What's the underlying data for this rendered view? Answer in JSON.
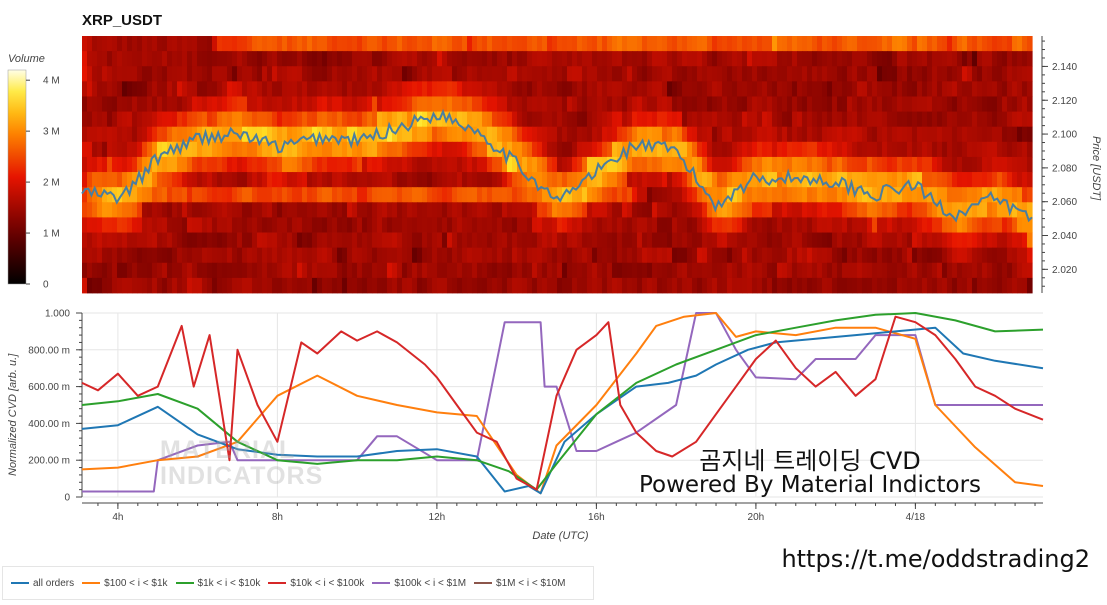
{
  "title": "XRP_USDT",
  "overlay": {
    "caption_ko": "곰지네 트레이딩 CVD",
    "caption_en": "Powered By Material Indictors",
    "url": "https://t.me/oddstrading2",
    "watermark": [
      "MATERIAL",
      "INDICATORS"
    ]
  },
  "colors": {
    "all_orders": "#1f77b4",
    "s100": "#ff7f0e",
    "s1k": "#2ca02c",
    "s10k": "#d62728",
    "s100k": "#9467bd",
    "s1m": "#8c564b",
    "price": "#4a7ea0"
  },
  "chart_data": [
    {
      "type": "heatmap",
      "title": "XRP_USDT",
      "ylabel": "Price [USDT]",
      "ylim": [
        2.006,
        2.158
      ],
      "yticks": [
        "2.020",
        "2.040",
        "2.060",
        "2.080",
        "2.100",
        "2.120",
        "2.140"
      ],
      "colorbar": {
        "label": "Volume",
        "ticks": [
          "0",
          "1 M",
          "2 M",
          "3 M",
          "4 M"
        ],
        "range": [
          0,
          4200000
        ]
      },
      "price_series": {
        "x": [
          3.0,
          4.0,
          5.0,
          6.0,
          7.0,
          8.0,
          9.0,
          10.0,
          11.0,
          12.0,
          13.0,
          14.0,
          15.0,
          16.0,
          17.0,
          18.0,
          19.0,
          20.0,
          21.0,
          22.0,
          23.0,
          24.0,
          25.0,
          26.0,
          27.0
        ],
        "y": [
          2.066,
          2.062,
          2.088,
          2.098,
          2.1,
          2.092,
          2.098,
          2.096,
          2.104,
          2.112,
          2.102,
          2.082,
          2.06,
          2.078,
          2.094,
          2.09,
          2.058,
          2.074,
          2.074,
          2.072,
          2.064,
          2.07,
          2.052,
          2.062,
          2.05
        ]
      }
    },
    {
      "type": "line",
      "xlabel": "Date (UTC)",
      "ylabel": "Normalized CVD [arb. u.]",
      "ylim": [
        0,
        1
      ],
      "yticks": [
        "0",
        "200.00 m",
        "400.00 m",
        "600.00 m",
        "800.00 m",
        "1.000"
      ],
      "xticks": [
        "4h",
        "8h",
        "12h",
        "16h",
        "20h",
        "4/18"
      ],
      "xlim": [
        3.1,
        27.2
      ],
      "series": [
        {
          "name": "all orders",
          "x": [
            3.1,
            4,
            5,
            6,
            7,
            8,
            9,
            10,
            11,
            12,
            13,
            13.7,
            14.3,
            14.6,
            15.2,
            16,
            17,
            17.8,
            18.5,
            19,
            19.8,
            20.5,
            21.5,
            22.5,
            23.5,
            24.5,
            25.2,
            26,
            27.2
          ],
          "y": [
            0.37,
            0.39,
            0.49,
            0.34,
            0.26,
            0.23,
            0.22,
            0.22,
            0.25,
            0.26,
            0.22,
            0.03,
            0.06,
            0.02,
            0.3,
            0.45,
            0.6,
            0.62,
            0.66,
            0.72,
            0.8,
            0.84,
            0.86,
            0.88,
            0.9,
            0.92,
            0.78,
            0.74,
            0.7
          ]
        },
        {
          "name": "$100 < i < $1k",
          "x": [
            3.1,
            4,
            5,
            6,
            7,
            8,
            9,
            10,
            11,
            12,
            13,
            13.5,
            14,
            14.6,
            15,
            16,
            17,
            17.5,
            18.2,
            19,
            19.5,
            20,
            21,
            22,
            23,
            24,
            24.5,
            25.5,
            26.5,
            27.2
          ],
          "y": [
            0.15,
            0.16,
            0.2,
            0.22,
            0.3,
            0.55,
            0.66,
            0.55,
            0.5,
            0.46,
            0.44,
            0.28,
            0.12,
            0.02,
            0.28,
            0.5,
            0.78,
            0.93,
            0.98,
            1.0,
            0.87,
            0.9,
            0.88,
            0.92,
            0.92,
            0.86,
            0.5,
            0.27,
            0.08,
            0.06
          ]
        },
        {
          "name": "$1k < i < $10k",
          "x": [
            3.1,
            4,
            5,
            6,
            7,
            8,
            9,
            10,
            11,
            12,
            13,
            13.8,
            14.5,
            15,
            16,
            17,
            18,
            19,
            19.5,
            20,
            21,
            22,
            23,
            24,
            25,
            26,
            27.2
          ],
          "y": [
            0.5,
            0.52,
            0.56,
            0.48,
            0.3,
            0.2,
            0.18,
            0.2,
            0.2,
            0.22,
            0.2,
            0.14,
            0.04,
            0.18,
            0.45,
            0.62,
            0.72,
            0.8,
            0.84,
            0.88,
            0.92,
            0.96,
            0.99,
            1.0,
            0.96,
            0.9,
            0.91
          ]
        },
        {
          "name": "$10k < i < $100k",
          "x": [
            3.1,
            3.5,
            4,
            4.5,
            5,
            5.6,
            5.9,
            6.3,
            6.8,
            7,
            7.5,
            8,
            8.6,
            9,
            9.6,
            10,
            10.5,
            11,
            11.7,
            12,
            12.5,
            13,
            13.5,
            14,
            14.5,
            15,
            15.5,
            16,
            16.3,
            16.6,
            17,
            17.5,
            17.9,
            18.5,
            19,
            19.5,
            20,
            20.5,
            21,
            21.5,
            22,
            22.5,
            23,
            23.5,
            24,
            24.5,
            25,
            25.5,
            26,
            26.5,
            27.2
          ],
          "y": [
            0.62,
            0.58,
            0.67,
            0.55,
            0.6,
            0.93,
            0.6,
            0.88,
            0.2,
            0.8,
            0.5,
            0.3,
            0.84,
            0.78,
            0.9,
            0.85,
            0.9,
            0.84,
            0.72,
            0.65,
            0.5,
            0.35,
            0.3,
            0.1,
            0.04,
            0.55,
            0.8,
            0.88,
            0.95,
            0.5,
            0.35,
            0.25,
            0.22,
            0.3,
            0.45,
            0.6,
            0.75,
            0.85,
            0.7,
            0.6,
            0.68,
            0.55,
            0.64,
            0.98,
            0.95,
            0.88,
            0.75,
            0.6,
            0.55,
            0.48,
            0.42
          ]
        },
        {
          "name": "$100k < i < $1M",
          "x": [
            3.1,
            4,
            4.9,
            5,
            6,
            6.8,
            7,
            8,
            9,
            10,
            10.5,
            11,
            12,
            13,
            13.7,
            13.8,
            14.6,
            14.7,
            15,
            15.5,
            16,
            16.5,
            17,
            18,
            18.5,
            19,
            19.5,
            20,
            21,
            21.5,
            22.5,
            23,
            24,
            24.5,
            25.5,
            26,
            27.2
          ],
          "y": [
            0.03,
            0.03,
            0.03,
            0.2,
            0.28,
            0.3,
            0.2,
            0.2,
            0.2,
            0.2,
            0.33,
            0.33,
            0.2,
            0.2,
            0.95,
            0.95,
            0.95,
            0.6,
            0.6,
            0.25,
            0.25,
            0.3,
            0.35,
            0.5,
            1.0,
            1.0,
            0.8,
            0.65,
            0.64,
            0.75,
            0.75,
            0.88,
            0.88,
            0.5,
            0.5,
            0.5,
            0.5
          ]
        },
        {
          "name": "$1M < i < $10M",
          "x": [],
          "y": []
        }
      ]
    }
  ]
}
